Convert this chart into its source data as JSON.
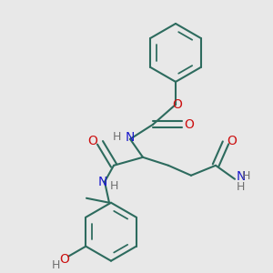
{
  "bg_color": "#e8e8e8",
  "bond_color": "#2d6b5e",
  "N_color": "#1a1acc",
  "O_color": "#cc1010",
  "H_color": "#707070",
  "line_width": 1.5,
  "figsize": [
    3.0,
    3.0
  ],
  "dpi": 100,
  "xlim": [
    0,
    300
  ],
  "ylim": [
    0,
    300
  ]
}
